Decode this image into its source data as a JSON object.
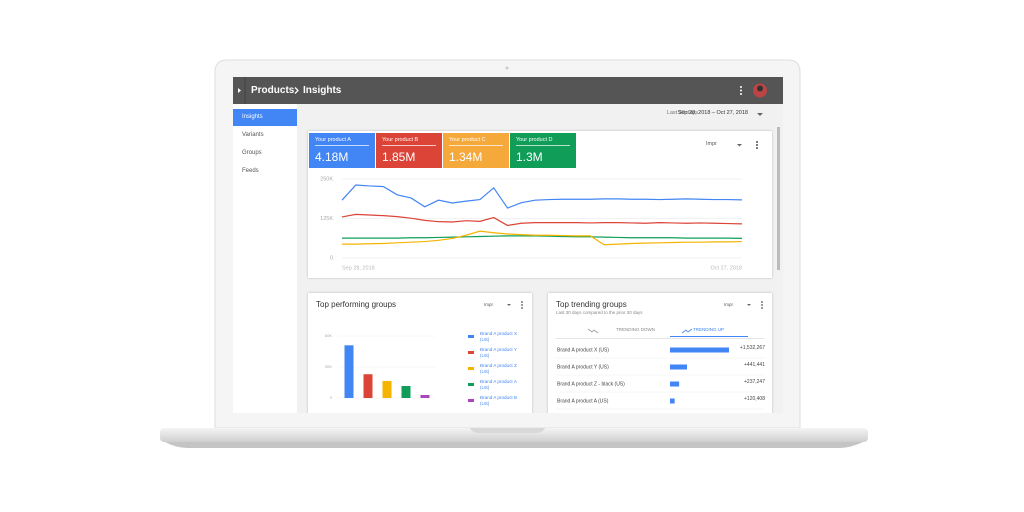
{
  "header": {
    "breadcrumb": [
      "Products",
      "Insights"
    ]
  },
  "nav": [
    "Insights",
    "Variants",
    "Groups",
    "Feeds"
  ],
  "date_range": {
    "label": "Last 30 days",
    "value": "Sep 28, 2018 – Oct 27, 2018"
  },
  "overview": {
    "tiles": [
      {
        "name": "Your product A",
        "value": "4.18M",
        "color": "#4285f4"
      },
      {
        "name": "Your product B",
        "value": "1.85M",
        "color": "#db4437"
      },
      {
        "name": "Your product C",
        "value": "1.34M",
        "color": "#f5a93a"
      },
      {
        "name": "Your product D",
        "value": "1.3M",
        "color": "#0f9d58"
      }
    ],
    "metric": "Impr",
    "chart_data": {
      "type": "line",
      "categories": [
        "Sep 28, 2018",
        null,
        null,
        null,
        null,
        null,
        null,
        null,
        null,
        null,
        null,
        null,
        null,
        null,
        null,
        null,
        null,
        null,
        null,
        null,
        null,
        null,
        null,
        null,
        null,
        null,
        null,
        null,
        null,
        "Oct 27, 2018"
      ],
      "series": [
        {
          "color": "#4285f4",
          "values": [
            183000,
            231000,
            228000,
            226000,
            200000,
            190000,
            162000,
            183000,
            174000,
            180000,
            185000,
            222000,
            158000,
            175000,
            183000,
            185000,
            186000,
            186000,
            186000,
            187000,
            187000,
            186000,
            186000,
            185000,
            186000,
            187000,
            186000,
            185000,
            185000,
            184000
          ]
        },
        {
          "color": "#db4437",
          "values": [
            130000,
            138000,
            136000,
            134000,
            131000,
            126000,
            119000,
            115000,
            114000,
            118000,
            116000,
            128000,
            103000,
            110000,
            112000,
            112000,
            112000,
            112000,
            111000,
            112000,
            112000,
            111000,
            110000,
            112000,
            111000,
            110000,
            111000,
            110000,
            109000,
            108000
          ]
        },
        {
          "color": "#0f9d58",
          "values": [
            63000,
            63000,
            63000,
            63000,
            63000,
            64000,
            64000,
            65000,
            66000,
            67000,
            68000,
            69000,
            70000,
            70000,
            70000,
            69000,
            68000,
            67000,
            67000,
            66000,
            65000,
            64000,
            64000,
            64000,
            64000,
            63000,
            63000,
            63000,
            63000,
            62000
          ]
        },
        {
          "color": "#f4b400",
          "values": [
            44000,
            44000,
            45000,
            46000,
            48000,
            50000,
            52000,
            56000,
            62000,
            72000,
            85000,
            80000,
            76000,
            74000,
            72000,
            72000,
            71000,
            70000,
            70000,
            42000,
            44000,
            46000,
            47000,
            48000,
            49000,
            50000,
            50000,
            51000,
            51000,
            52000
          ]
        }
      ],
      "ylim": [
        0,
        250000
      ],
      "yticks": [
        0,
        {
          "value": 125000,
          "label": "125K"
        },
        {
          "value": 250000,
          "label": "250K"
        }
      ],
      "grid": true
    }
  },
  "top_performing": {
    "title": "Top performing groups",
    "metric": "Impr",
    "chart_data": {
      "type": "bar",
      "categories": [
        "Brand A product X (US)",
        "Brand A product Y (US)",
        "Brand A product Z (US)",
        "Brand A product A (US)",
        "Brand A product B (US)"
      ],
      "values": [
        51000,
        23000,
        16500,
        11600,
        2900
      ],
      "colors": [
        "#4285f4",
        "#db4437",
        "#f4b400",
        "#0f9d58",
        "#ab47bc"
      ],
      "ylim": [
        0,
        60000
      ],
      "yticks": [
        0,
        {
          "value": 30000,
          "label": "30K"
        },
        {
          "value": 60000,
          "label": "60K"
        }
      ],
      "grid": true
    }
  },
  "top_trending": {
    "title": "Top trending groups",
    "subtitle": "Last 30 days compared to the prior 30 days",
    "metric": "Impr",
    "tabs": [
      "TRENDING DOWN",
      "TRENDING UP"
    ],
    "chart_data": {
      "type": "bar",
      "orientation": "horizontal",
      "categories": [
        "Brand A product X (US)",
        "Brand A product Y (US)",
        "Brand A product Z - black (US)",
        "Brand A product A (US)"
      ],
      "values": [
        1532267,
        441441,
        237247,
        120408
      ],
      "value_labels": [
        "+1,532,267",
        "+441,441",
        "+237,247",
        "+120,408"
      ],
      "color": "#4285f4"
    }
  }
}
